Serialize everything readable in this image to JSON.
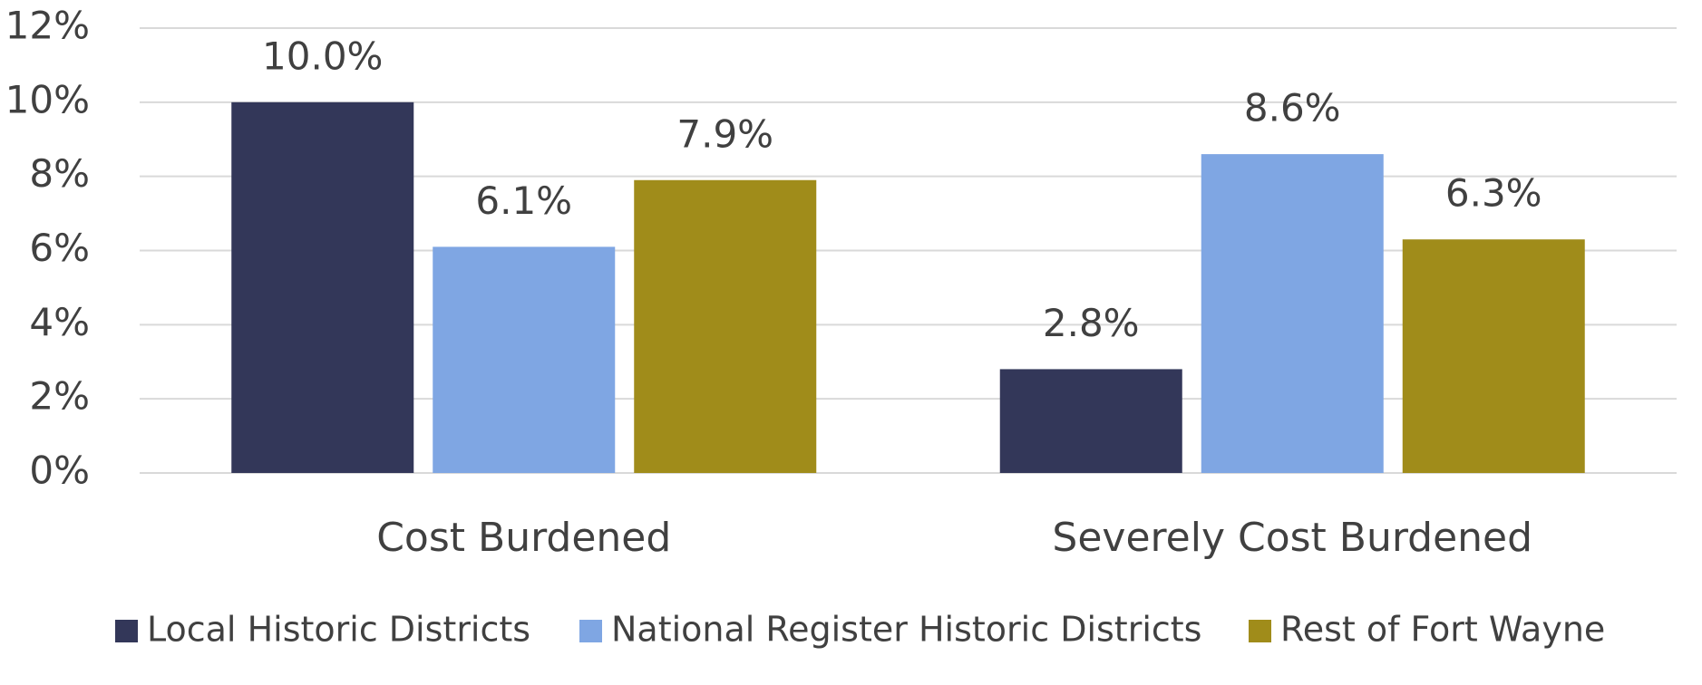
{
  "chart_data": {
    "type": "bar",
    "categories": [
      "Cost Burdened",
      "Severely Cost Burdened"
    ],
    "series": [
      {
        "name": "Local Historic Districts",
        "color": "#333759",
        "values": [
          10.0,
          2.8
        ],
        "value_labels": [
          "10.0%",
          "2.8%"
        ]
      },
      {
        "name": "National Register Historic Districts",
        "color": "#7fa6e3",
        "values": [
          6.1,
          8.6
        ],
        "value_labels": [
          "6.1%",
          "8.6%"
        ]
      },
      {
        "name": "Rest of Fort Wayne",
        "color": "#a08c1a",
        "values": [
          7.9,
          6.3
        ],
        "value_labels": [
          "7.9%",
          "6.3%"
        ]
      }
    ],
    "ylim": [
      0,
      12
    ],
    "yticks": [
      {
        "value": 0,
        "label": "0%"
      },
      {
        "value": 2,
        "label": "2%"
      },
      {
        "value": 4,
        "label": "4%"
      },
      {
        "value": 6,
        "label": "6%"
      },
      {
        "value": 8,
        "label": "8%"
      },
      {
        "value": 10,
        "label": "10%"
      },
      {
        "value": 12,
        "label": "12%"
      }
    ],
    "grid": true,
    "legend": "bottom"
  }
}
